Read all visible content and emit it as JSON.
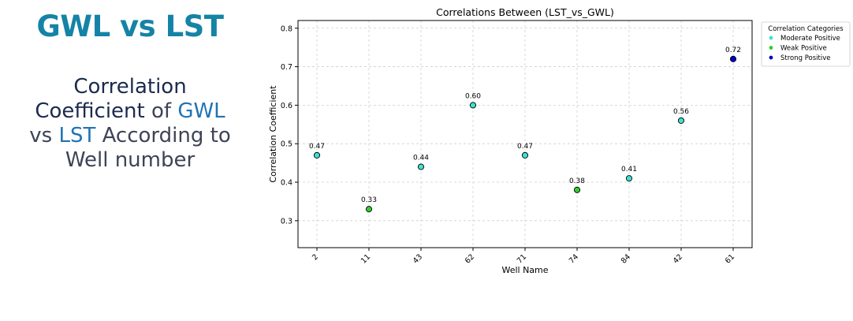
{
  "heading": "GWL vs LST",
  "subtitle": {
    "l1": "Correlation",
    "l2a": "Coefficient",
    "l2b": " of ",
    "l2c": "GWL",
    "l3a": "vs ",
    "l3b": "LST",
    "l3c": " According to",
    "l4": "Well number"
  },
  "colors": {
    "heading": "#1583a6",
    "accent": "#1f73b5",
    "moderate": "#40e0d0",
    "weak": "#32cd32",
    "strong": "#0000cd"
  },
  "chart_data": {
    "type": "scatter",
    "title": "Correlations Between (LST_vs_GWL)",
    "xlabel": "Well Name",
    "ylabel": "Correlation Coefficient",
    "categories": [
      "2",
      "11",
      "43",
      "62",
      "71",
      "74",
      "84",
      "42",
      "61"
    ],
    "values": [
      0.47,
      0.33,
      0.44,
      0.6,
      0.47,
      0.38,
      0.41,
      0.56,
      0.72
    ],
    "point_labels": [
      "0.47",
      "0.33",
      "0.44",
      "0.60",
      "0.47",
      "0.38",
      "0.41",
      "0.56",
      "0.72"
    ],
    "point_category": [
      "moderate",
      "weak",
      "moderate",
      "moderate",
      "moderate",
      "weak",
      "moderate",
      "moderate",
      "strong"
    ],
    "ylim": [
      0.23,
      0.82
    ],
    "yticks": [
      0.3,
      0.4,
      0.5,
      0.6,
      0.7,
      0.8
    ],
    "ytick_labels": [
      "0.3",
      "0.4",
      "0.5",
      "0.6",
      "0.7",
      "0.8"
    ],
    "grid": true,
    "legend": {
      "title": "Correlation Categories",
      "placement": "outside-top-right",
      "entries": [
        {
          "name": "Moderate Positive",
          "key": "moderate"
        },
        {
          "name": "Weak Positive",
          "key": "weak"
        },
        {
          "name": "Strong Positive",
          "key": "strong"
        }
      ]
    }
  }
}
